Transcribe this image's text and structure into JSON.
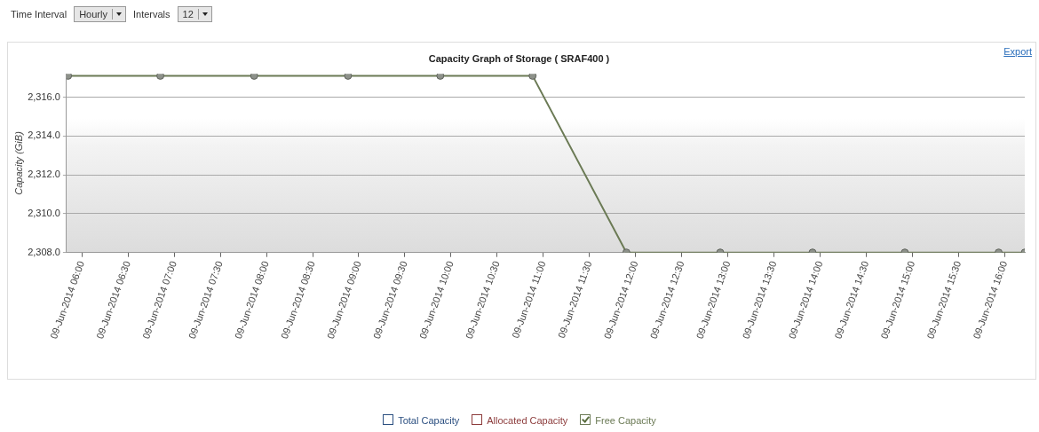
{
  "chart_data": {
    "type": "line",
    "title": "Capacity Graph of Storage ( SRAF400 )",
    "ylabel": "Capacity (GiB)",
    "annotations": [
      "Time Interval",
      "Hourly",
      "Intervals",
      "12",
      "Export"
    ],
    "x": [
      "2014-06-09T05:51",
      "2014-06-09T06:51",
      "2014-06-09T07:52",
      "2014-06-09T08:53",
      "2014-06-09T09:53",
      "2014-06-09T10:53",
      "2014-06-09T11:54",
      "2014-06-09T12:55",
      "2014-06-09T13:55",
      "2014-06-09T14:55",
      "2014-06-09T15:56",
      "2014-06-09T16:13"
    ],
    "series": [
      {
        "name": "Total Capacity",
        "color": "#2b4f80",
        "values": [
          null,
          null,
          null,
          null,
          null,
          null,
          null,
          null,
          null,
          null,
          null,
          null
        ]
      },
      {
        "name": "Allocated Capacity",
        "color": "#8c3b3b",
        "values": [
          null,
          null,
          null,
          null,
          null,
          null,
          null,
          null,
          null,
          null,
          null,
          null
        ]
      },
      {
        "name": "Free Capacity",
        "color": "#6b7a55",
        "values": [
          2317.1,
          2317.1,
          2317.1,
          2317.1,
          2317.1,
          2317.1,
          2308.0,
          2308.0,
          2308.0,
          2308.0,
          2308.0,
          2308.0
        ]
      }
    ],
    "xlim": [
      "2014-06-09T05:50",
      "2014-06-09T16:13"
    ],
    "xticks": [
      {
        "value": "2014-06-09T06:00",
        "label": "09-Jun-2014 06:00"
      },
      {
        "value": "2014-06-09T06:30",
        "label": "09-Jun-2014 06:30"
      },
      {
        "value": "2014-06-09T07:00",
        "label": "09-Jun-2014 07:00"
      },
      {
        "value": "2014-06-09T07:30",
        "label": "09-Jun-2014 07:30"
      },
      {
        "value": "2014-06-09T08:00",
        "label": "09-Jun-2014 08:00"
      },
      {
        "value": "2014-06-09T08:30",
        "label": "09-Jun-2014 08:30"
      },
      {
        "value": "2014-06-09T09:00",
        "label": "09-Jun-2014 09:00"
      },
      {
        "value": "2014-06-09T09:30",
        "label": "09-Jun-2014 09:30"
      },
      {
        "value": "2014-06-09T10:00",
        "label": "09-Jun-2014 10:00"
      },
      {
        "value": "2014-06-09T10:30",
        "label": "09-Jun-2014 10:30"
      },
      {
        "value": "2014-06-09T11:00",
        "label": "09-Jun-2014 11:00"
      },
      {
        "value": "2014-06-09T11:30",
        "label": "09-Jun-2014 11:30"
      },
      {
        "value": "2014-06-09T12:00",
        "label": "09-Jun-2014 12:00"
      },
      {
        "value": "2014-06-09T12:30",
        "label": "09-Jun-2014 12:30"
      },
      {
        "value": "2014-06-09T13:00",
        "label": "09-Jun-2014 13:00"
      },
      {
        "value": "2014-06-09T13:30",
        "label": "09-Jun-2014 13:30"
      },
      {
        "value": "2014-06-09T14:00",
        "label": "09-Jun-2014 14:00"
      },
      {
        "value": "2014-06-09T14:30",
        "label": "09-Jun-2014 14:30"
      },
      {
        "value": "2014-06-09T15:00",
        "label": "09-Jun-2014 15:00"
      },
      {
        "value": "2014-06-09T15:30",
        "label": "09-Jun-2014 15:30"
      },
      {
        "value": "2014-06-09T16:00",
        "label": "09-Jun-2014 16:00"
      }
    ],
    "ylim": [
      2308,
      2317.2
    ],
    "yticks": [
      {
        "value": 2308,
        "label": "2,308.0"
      },
      {
        "value": 2310,
        "label": "2,310.0"
      },
      {
        "value": 2312,
        "label": "2,312.0"
      },
      {
        "value": 2314,
        "label": "2,314.0"
      },
      {
        "value": 2316,
        "label": "2,316.0"
      }
    ],
    "grid": "y",
    "legend": "bottom",
    "marker": "circle",
    "line_style": "solid"
  }
}
